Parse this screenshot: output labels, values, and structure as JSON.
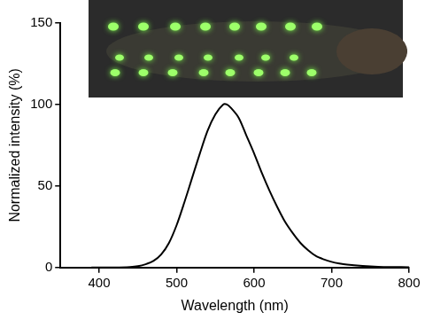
{
  "chart_data": {
    "type": "line",
    "x_label": "Wavelength (nm)",
    "y_label": "Normalized intensity (%)",
    "x": [
      390,
      400,
      420,
      440,
      450,
      460,
      470,
      480,
      490,
      500,
      510,
      520,
      530,
      540,
      550,
      560,
      565,
      570,
      580,
      590,
      600,
      610,
      620,
      630,
      640,
      650,
      660,
      670,
      680,
      690,
      700,
      710,
      720,
      740,
      760,
      780,
      800
    ],
    "values": [
      0,
      0,
      0,
      0.3,
      0.8,
      2,
      4,
      8,
      15,
      26,
      40,
      55,
      70,
      84,
      94,
      100,
      100,
      98,
      92,
      81,
      70,
      58,
      47,
      37,
      28,
      21,
      15,
      10.5,
      7,
      5,
      3.5,
      2.5,
      1.8,
      1,
      0.5,
      0.3,
      0.2
    ],
    "color": "#000000",
    "xlim": [
      350,
      800
    ],
    "xticks": [
      400,
      500,
      600,
      700,
      800
    ],
    "ylim": [
      0,
      150
    ],
    "yticks": [
      0,
      50,
      100,
      150
    ],
    "grid": false
  }
}
